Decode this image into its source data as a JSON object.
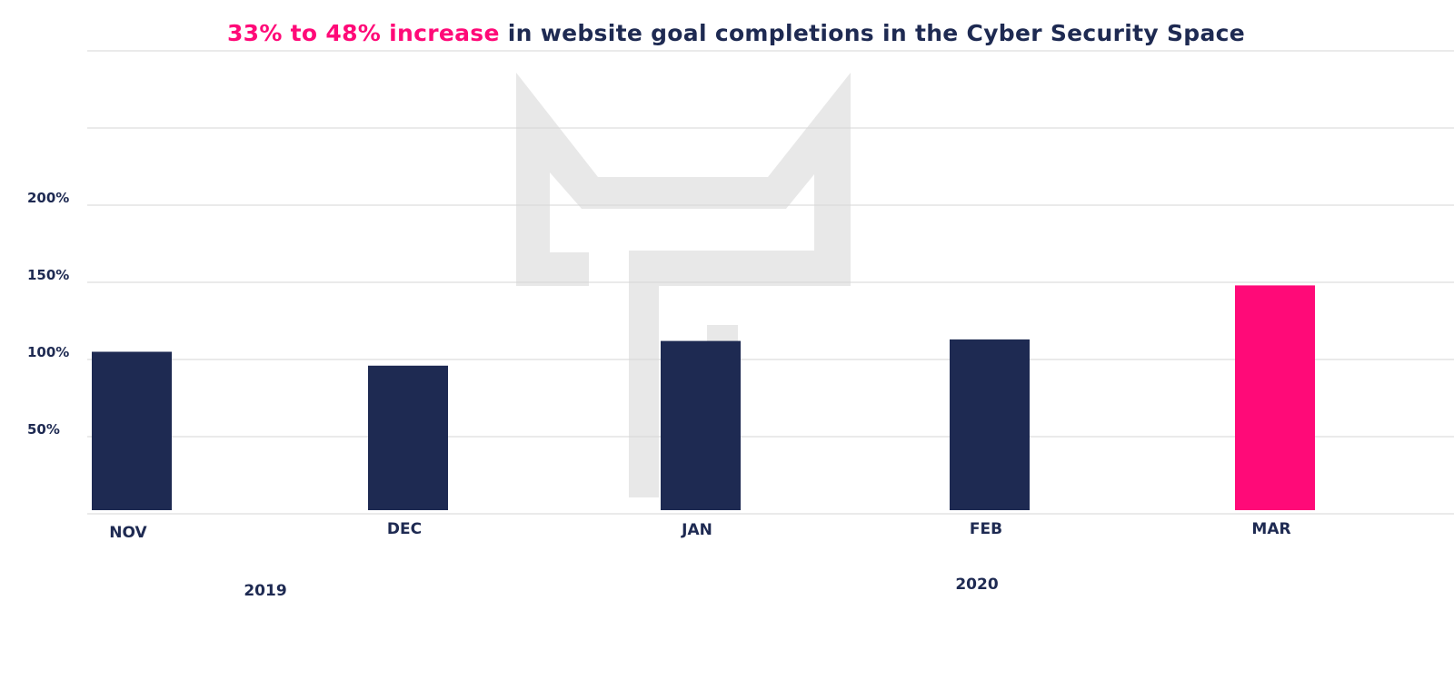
{
  "chart_data": {
    "type": "bar",
    "title_highlight": "33% to 48% increase",
    "title_rest": " in website goal completions in the Cyber Security Space",
    "categories": [
      "NOV",
      "DEC",
      "JAN",
      "FEB",
      "MAR"
    ],
    "values": [
      105,
      96,
      112,
      113,
      148
    ],
    "colors": [
      "#1e2a52",
      "#1e2a52",
      "#1e2a52",
      "#1e2a52",
      "#ff0a78"
    ],
    "highlight_color": "#ff0a78",
    "yticks": [
      50,
      100,
      150,
      200
    ],
    "ytick_labels": [
      "50%",
      "100%",
      "150%",
      "200%"
    ],
    "ylim": [
      0,
      300
    ],
    "grid": true,
    "year_labels": [
      "2019",
      "2020"
    ],
    "xlabel": "",
    "ylabel": ""
  }
}
